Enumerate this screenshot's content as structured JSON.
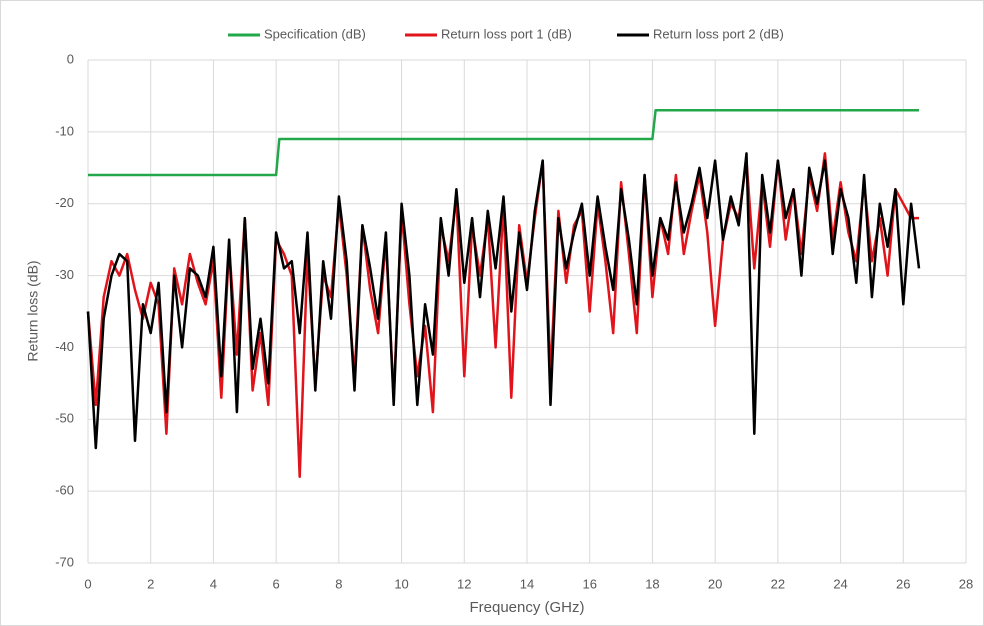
{
  "chart_data": {
    "type": "line",
    "xlabel": "Frequency (GHz)",
    "ylabel": "Return loss (dB)",
    "xlim": [
      0,
      28
    ],
    "ylim": [
      -70,
      0
    ],
    "xticks": [
      0,
      2,
      4,
      6,
      8,
      10,
      12,
      14,
      16,
      18,
      20,
      22,
      24,
      26,
      28
    ],
    "yticks": [
      0,
      -10,
      -20,
      -30,
      -40,
      -50,
      -60,
      -70
    ],
    "grid": true,
    "legend": "top",
    "x": [
      0,
      0.25,
      0.5,
      0.75,
      1,
      1.25,
      1.5,
      1.75,
      2,
      2.25,
      2.5,
      2.75,
      3,
      3.25,
      3.5,
      3.75,
      4,
      4.25,
      4.5,
      4.75,
      5,
      5.25,
      5.5,
      5.75,
      6,
      6.25,
      6.5,
      6.75,
      7,
      7.25,
      7.5,
      7.75,
      8,
      8.25,
      8.5,
      8.75,
      9,
      9.25,
      9.5,
      9.75,
      10,
      10.25,
      10.5,
      10.75,
      11,
      11.25,
      11.5,
      11.75,
      12,
      12.25,
      12.5,
      12.75,
      13,
      13.25,
      13.5,
      13.75,
      14,
      14.25,
      14.5,
      14.75,
      15,
      15.25,
      15.5,
      15.75,
      16,
      16.25,
      16.5,
      16.75,
      17,
      17.25,
      17.5,
      17.75,
      18,
      18.25,
      18.5,
      18.75,
      19,
      19.25,
      19.5,
      19.75,
      20,
      20.25,
      20.5,
      20.75,
      21,
      21.25,
      21.5,
      21.75,
      22,
      22.25,
      22.5,
      22.75,
      23,
      23.25,
      23.5,
      23.75,
      24,
      24.25,
      24.5,
      24.75,
      25,
      25.25,
      25.5,
      25.75,
      26,
      26.25,
      26.5
    ],
    "series": [
      {
        "name": "Specification (dB)",
        "color": "#22a84a",
        "x": [
          0,
          6,
          6.1,
          18,
          18.1,
          26.5
        ],
        "values": [
          -16,
          -16,
          -11,
          -11,
          -7,
          -7
        ]
      },
      {
        "name": "Return loss port 1 (dB)",
        "color": "#e0141a",
        "values": [
          -35,
          -48,
          -33,
          -28,
          -30,
          -27,
          -32,
          -36,
          -31,
          -34,
          -52,
          -29,
          -34,
          -27,
          -31,
          -34,
          -28,
          -47,
          -26,
          -41,
          -22,
          -46,
          -38,
          -48,
          -25,
          -27,
          -30,
          -58,
          -27,
          -45,
          -30,
          -33,
          -20,
          -30,
          -44,
          -23,
          -32,
          -38,
          -25,
          -47,
          -21,
          -34,
          -44,
          -37,
          -49,
          -23,
          -28,
          -19,
          -44,
          -23,
          -30,
          -22,
          -40,
          -20,
          -47,
          -23,
          -31,
          -22,
          -14,
          -44,
          -21,
          -31,
          -23,
          -21,
          -35,
          -20,
          -28,
          -38,
          -17,
          -27,
          -38,
          -16,
          -33,
          -22,
          -27,
          -16,
          -27,
          -21,
          -16,
          -24,
          -37,
          -25,
          -20,
          -22,
          -14,
          -29,
          -17,
          -26,
          -14,
          -25,
          -18,
          -27,
          -16,
          -21,
          -13,
          -25,
          -17,
          -24,
          -28,
          -17,
          -28,
          -22,
          -30,
          -18,
          -20,
          -22,
          -22
        ]
      },
      {
        "name": "Return loss port 2 (dB)",
        "color": "#000000",
        "values": [
          -35,
          -54,
          -36,
          -30,
          -27,
          -28,
          -53,
          -34,
          -38,
          -31,
          -49,
          -30,
          -40,
          -29,
          -30,
          -33,
          -26,
          -44,
          -25,
          -49,
          -22,
          -43,
          -36,
          -45,
          -24,
          -29,
          -28,
          -38,
          -24,
          -46,
          -28,
          -36,
          -19,
          -28,
          -46,
          -23,
          -29,
          -36,
          -24,
          -48,
          -20,
          -30,
          -48,
          -34,
          -41,
          -22,
          -30,
          -18,
          -31,
          -22,
          -33,
          -21,
          -29,
          -19,
          -35,
          -24,
          -32,
          -21,
          -14,
          -48,
          -22,
          -29,
          -24,
          -20,
          -30,
          -19,
          -26,
          -32,
          -18,
          -25,
          -34,
          -16,
          -30,
          -22,
          -25,
          -17,
          -24,
          -20,
          -15,
          -22,
          -14,
          -25,
          -19,
          -23,
          -13,
          -52,
          -16,
          -24,
          -14,
          -22,
          -18,
          -30,
          -15,
          -20,
          -14,
          -27,
          -18,
          -22,
          -31,
          -16,
          -33,
          -20,
          -26,
          -18,
          -34,
          -20,
          -29
        ]
      }
    ]
  }
}
